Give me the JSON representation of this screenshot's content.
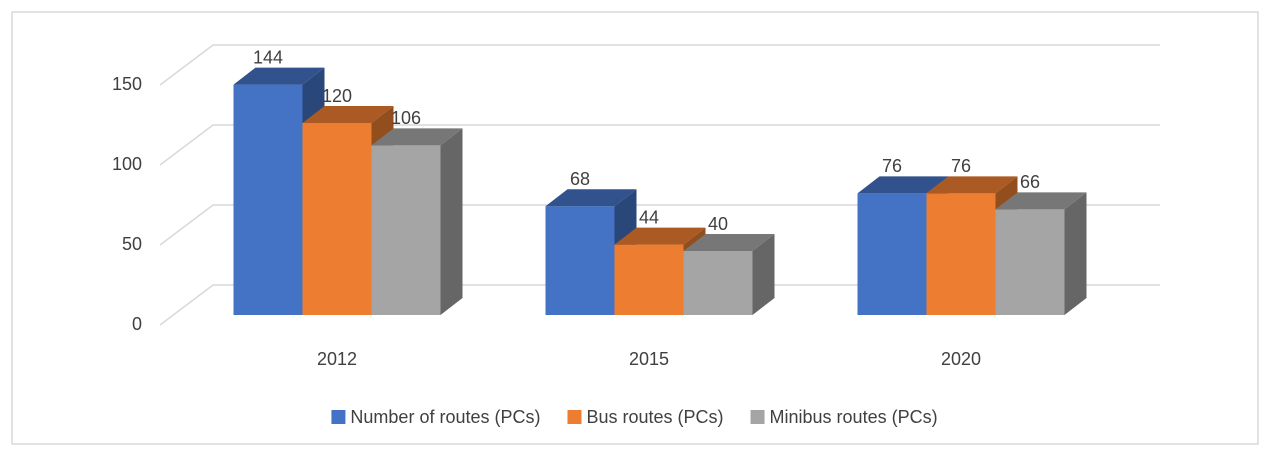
{
  "chart_data": {
    "type": "bar3d",
    "categories": [
      "2012",
      "2015",
      "2020"
    ],
    "series": [
      {
        "name": "Number of routes (PCs)",
        "color": "#4472c4",
        "values": [
          144,
          68,
          76
        ]
      },
      {
        "name": "Bus routes (PCs)",
        "color": "#ed7d31",
        "values": [
          120,
          44,
          76
        ]
      },
      {
        "name": "Minibus routes (PCs)",
        "color": "#a5a5a5",
        "values": [
          106,
          40,
          66
        ]
      }
    ],
    "ylim": [
      0,
      150
    ],
    "yticks": [
      0,
      50,
      100,
      150
    ],
    "grid": true,
    "legend": "bottom"
  }
}
